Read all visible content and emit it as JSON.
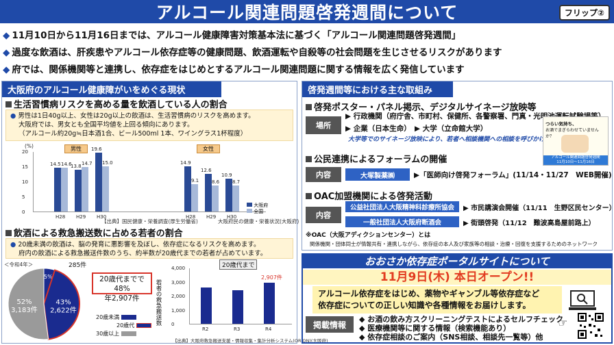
{
  "header": {
    "title": "アルコール関連問題啓発週間について",
    "flip": "フリップ②"
  },
  "bullets": [
    "11月10日から11月16日までは、アルコール健康障害対策基本法に基づく「アルコール関連問題啓発週間」",
    "過度な飲酒は、肝疾患やアルコール依存症等の健康問題、飲酒運転や自殺等の社会問題を生じさせるリスクがあります",
    "府では、関係機関等と連携し、依存症をはじめとするアルコール関連問題に関する情報を広く発信しています"
  ],
  "left_panel": {
    "heading": "大阪府のアルコール健康障がいをめぐる現状",
    "sec1": {
      "title": "生活習慣病リスクを高める量を飲酒している人の割合",
      "note_l1": "男性は1日40g以上、女性は20g以上の飲酒は、生活習慣病のリスクを高めます。",
      "note_l2": "大阪府では、男女とも全国平均値を上回る傾向にあります。",
      "note_l3": "（アルコール約20g≒日本酒1合、ビール500ml 1本、ワイングラス1杯程度）",
      "source_l": "【出典】国民健康・栄養調査(厚生労働省)",
      "source_r": "大阪府民の健康・栄養状況(大阪府)"
    },
    "sec2": {
      "title": "飲酒による救急搬送数に占める若者の割合",
      "note_l1": "20歳未満の飲酒は、脳の発育に悪影響を及ぼし、依存症になるリスクを高めます。",
      "note_l2": "府内の飲酒による救急搬送件数のうち、約半数が20歳代までの若者が占めています。",
      "source": "【出典】大阪府救急搬送支援・情報収集・集計分析システム(ORION)(大阪府)"
    }
  },
  "chart_data": [
    {
      "type": "bar",
      "ylabel": "(%)",
      "ylim": [
        0,
        20
      ],
      "yticks": [
        "20",
        "15",
        "10",
        "5",
        "0"
      ],
      "groups": [
        "男性",
        "女性"
      ],
      "categories": [
        "H28",
        "H29",
        "H30",
        "H28",
        "H29",
        "H30"
      ],
      "series": [
        {
          "name": "大阪府",
          "values": [
            14.5,
            13.8,
            19.6,
            14.9,
            12.6,
            10.9
          ],
          "color": "#2a4a95"
        },
        {
          "name": "全国",
          "values": [
            14.6,
            14.7,
            15.0,
            9.1,
            8.6,
            8.7
          ],
          "color": "#a7b9d9"
        }
      ],
      "labels_osaka": [
        "14.5",
        "13.8",
        "19.6",
        "14.9",
        "12.6",
        "10.9"
      ],
      "labels_national": [
        "14.6",
        "14.7",
        "15.0",
        "9.1",
        "8.6",
        "8.7"
      ]
    },
    {
      "type": "pie",
      "title": "＜令和4年＞",
      "slices": [
        {
          "name": "20歳未満",
          "value": 5,
          "label": "5%",
          "count": "285件",
          "color": "#1a2b8f"
        },
        {
          "name": "20歳代",
          "value": 43,
          "label": "43%",
          "count": "2,622件",
          "color": "#1a2b8f"
        },
        {
          "name": "30歳以上",
          "value": 52,
          "label": "52%",
          "count": "3,183件",
          "color": "#9a9a9a"
        }
      ],
      "callout_l1": "20歳代までで48%",
      "callout_l2": "年2,907件",
      "legend": [
        "20歳未満",
        "20歳代",
        "30歳以上"
      ]
    },
    {
      "type": "bar",
      "title": "20歳代まで",
      "ylabel": "若者の救急搬送数",
      "ylim": [
        0,
        4000
      ],
      "yticks": [
        "4,000",
        "3,000",
        "2,000",
        "1,000",
        "0"
      ],
      "categories": [
        "R2",
        "R3",
        "R4"
      ],
      "values": [
        2600,
        2400,
        2907
      ],
      "highlight": "2,907件"
    }
  ],
  "right_panel": {
    "heading": "啓発週間等における主な取組み",
    "sec1_title": "啓発ポスター・パネル掲示、デジタルサイネージ放映等",
    "place_label": "場所",
    "place_items": [
      "行政機関（府庁舎、市町村、保健所、各警察署、門真・光明池運転試験場等）",
      "企業（日本生命）",
      "大学（立命館大学）"
    ],
    "place_note": "大学等でのサイネージ放映により、若者へ相談機関への相談を呼びかけ!",
    "poster_l1": "つらい気持ち、",
    "poster_l2": "お酒でまぎらわせていませんか？",
    "poster_foot1": "アルコール関連問題啓発週間",
    "poster_foot2": "11月10日～11月16日",
    "sec2_title": "公民連携によるフォーラムの開催",
    "content_label": "内容",
    "org1": "大塚製薬㈱",
    "forum": "「医師向け啓発フォーラム」(11/14・11/27　WEB開催)",
    "sec3_title": "OAC加盟機関による啓発活動",
    "org2": "公益社団法人大阪精神科診療所協会",
    "org3": "一般社団法人大阪府断酒会",
    "act1": "市民講演会開催（11/11　生野区民センター）",
    "act2": "街頭啓発（11/12　難波高島屋前路上）",
    "oac_note1": "※OAC（大阪アディクションセンター）とは",
    "oac_note2": "関係機関・団体同士が情報共有・連携しながら、依存症の本人及び家族等の相談・治療・回復を支援するためのネットワーク"
  },
  "portal": {
    "heading": "おおさか依存症ポータルサイトについて",
    "date": "11月9日(木) 本日オープン!!",
    "desc_l1": "アルコール依存症をはじめ、薬物やギャンブル等依存症など",
    "desc_l2": "依存症についての正しい知識や各種情報をお届けします。",
    "info_label": "掲載情報",
    "items": [
      "お酒の飲み方スクリーニングテストによるセルフチェック",
      "医療機関等に関する情報（検索機能あり）",
      "依存症相談のご案内（SNS相談、相談先一覧等）他"
    ]
  }
}
